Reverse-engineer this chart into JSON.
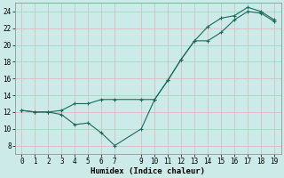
{
  "title": "",
  "xlabel": "Humidex (Indice chaleur)",
  "ylabel": "",
  "background_color": "#cceae7",
  "grid_color": "#b0d8d4",
  "line_color": "#1a6b5e",
  "series1_x": [
    0,
    1,
    2,
    3,
    4,
    5,
    6,
    7,
    9,
    10,
    11,
    12,
    13,
    14,
    15,
    16,
    17,
    18,
    19
  ],
  "series1_y": [
    12.2,
    12.0,
    12.0,
    12.2,
    13.0,
    13.0,
    13.5,
    13.5,
    13.5,
    13.5,
    15.8,
    18.3,
    20.5,
    22.2,
    23.2,
    23.5,
    24.5,
    24.0,
    23.0
  ],
  "series2_x": [
    0,
    1,
    2,
    3,
    4,
    5,
    6,
    7,
    9,
    10,
    11,
    12,
    13,
    14,
    15,
    16,
    17,
    18,
    19
  ],
  "series2_y": [
    12.2,
    12.0,
    12.0,
    11.7,
    10.5,
    10.7,
    9.5,
    8.0,
    10.0,
    13.5,
    15.8,
    18.3,
    20.5,
    20.5,
    21.5,
    23.0,
    24.0,
    23.8,
    22.8
  ],
  "xlim": [
    -0.5,
    19.5
  ],
  "ylim": [
    7,
    25
  ],
  "xticks": [
    0,
    1,
    2,
    3,
    4,
    5,
    6,
    7,
    9,
    10,
    11,
    12,
    13,
    14,
    15,
    16,
    17,
    18,
    19
  ],
  "yticks": [
    8,
    10,
    12,
    14,
    16,
    18,
    20,
    22,
    24
  ],
  "markersize": 2.0,
  "linewidth": 0.8,
  "xlabel_fontsize": 6.5,
  "tick_fontsize": 5.5,
  "spine_color": "#888888"
}
